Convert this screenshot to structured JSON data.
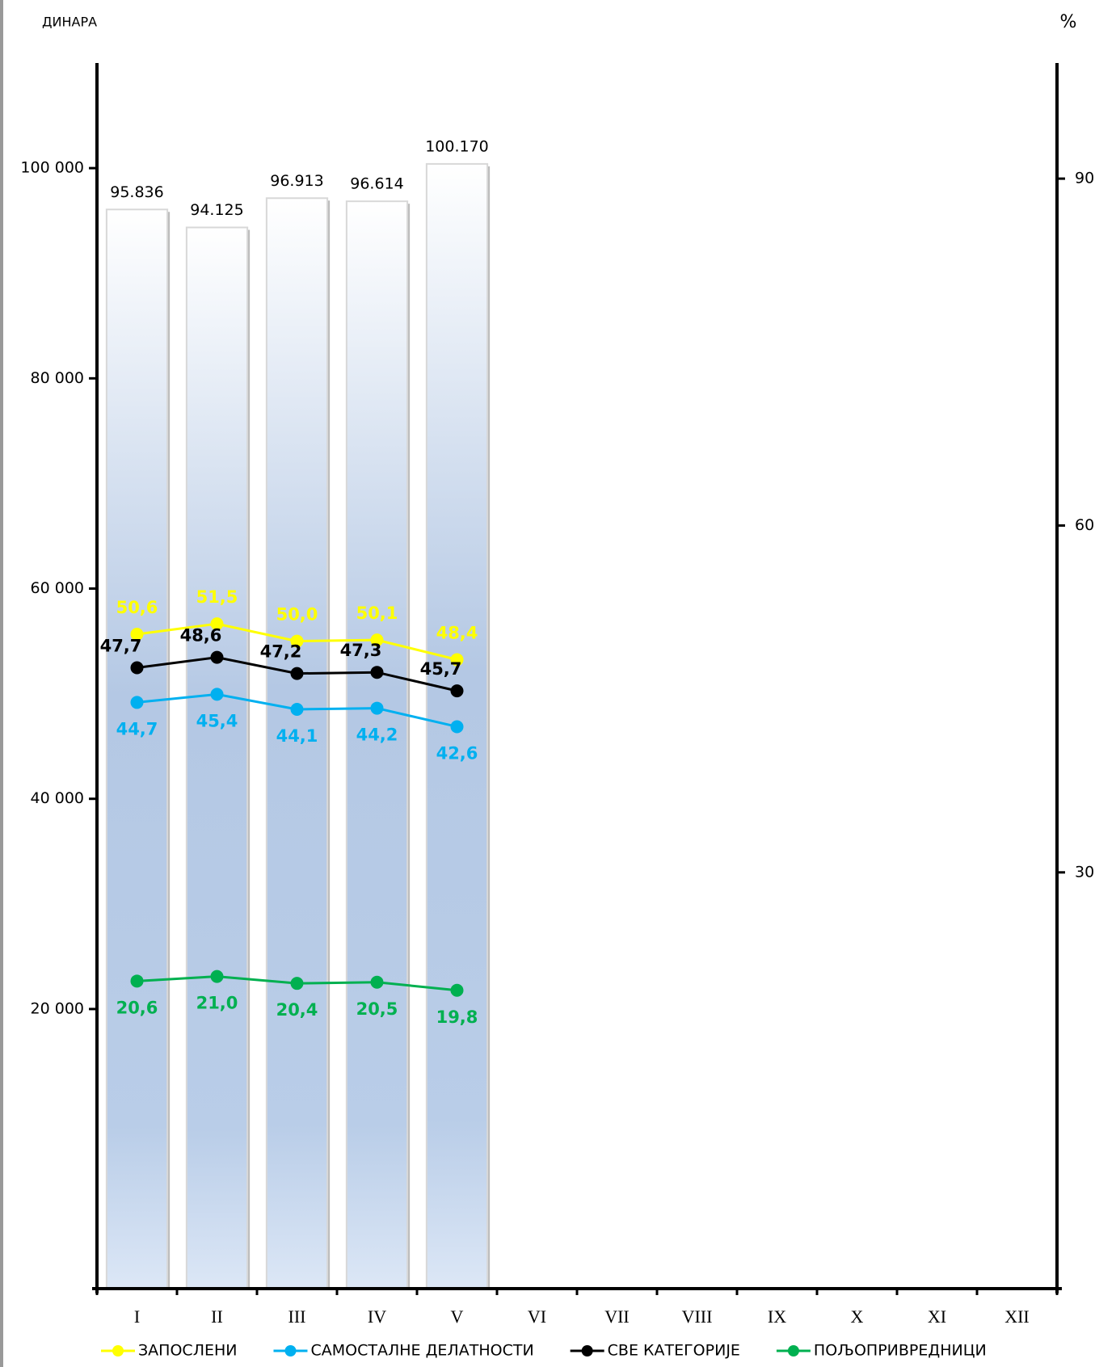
{
  "chart_data": {
    "type": "bar-line",
    "y_label": "ДИНАРА",
    "y2_label": "%",
    "categories": [
      "I",
      "II",
      "III",
      "IV",
      "V",
      "VI",
      "VII",
      "VIII",
      "IX",
      "X",
      "XI",
      "XII"
    ],
    "values": [
      95836,
      94125,
      96913,
      96614,
      100170,
      null,
      null,
      null,
      null,
      null,
      null,
      null
    ],
    "value_labels": [
      "95.836",
      "94.125",
      "96.913",
      "96.614",
      "100.170",
      null,
      null,
      null,
      null,
      null,
      null,
      null
    ],
    "ylim": [
      -6600,
      110000
    ],
    "yticks": [
      {
        "value": 20000,
        "label": "20 000"
      },
      {
        "value": 40000,
        "label": "40 000"
      },
      {
        "value": 60000,
        "label": "60 000"
      },
      {
        "value": 80000,
        "label": "80 000"
      },
      {
        "value": 100000,
        "label": "100 000"
      }
    ],
    "y2lim": [
      -6,
      100
    ],
    "y2ticks": [
      30,
      60,
      90
    ],
    "series": [
      {
        "name": "ЗАПОСЛЕНИ",
        "color": "#ffff00",
        "axis": "y2",
        "values": [
          50.6,
          51.5,
          50.0,
          50.1,
          48.4,
          null,
          null,
          null,
          null,
          null,
          null,
          null
        ],
        "value_labels": [
          "50,6",
          "51,5",
          "50,0",
          "50,1",
          "48,4",
          null,
          null,
          null,
          null,
          null,
          null,
          null
        ]
      },
      {
        "name": "САМОСТАЛНЕ ДЕЛАТНОСТИ",
        "color": "#00b0f0",
        "axis": "y2",
        "values": [
          44.7,
          45.4,
          44.1,
          44.2,
          42.6,
          null,
          null,
          null,
          null,
          null,
          null,
          null
        ],
        "value_labels": [
          "44,7",
          "45,4",
          "44,1",
          "44,2",
          "42,6",
          null,
          null,
          null,
          null,
          null,
          null,
          null
        ]
      },
      {
        "name": "СВЕ КАТЕГОРИЈЕ",
        "color": "#000000",
        "axis": "y2",
        "values": [
          47.7,
          48.6,
          47.2,
          47.3,
          45.7,
          null,
          null,
          null,
          null,
          null,
          null,
          null
        ],
        "value_labels": [
          "47,7",
          "48,6",
          "47,2",
          "47,3",
          "45,7",
          null,
          null,
          null,
          null,
          null,
          null,
          null
        ]
      },
      {
        "name": "ПОЉОПРИВРЕДНИЦИ",
        "color": "#00b050",
        "axis": "y2",
        "values": [
          20.6,
          21.0,
          20.4,
          20.5,
          19.8,
          null,
          null,
          null,
          null,
          null,
          null,
          null
        ],
        "value_labels": [
          "20,6",
          "21,0",
          "20,4",
          "20,5",
          "19,8",
          null,
          null,
          null,
          null,
          null,
          null,
          null
        ]
      }
    ]
  }
}
